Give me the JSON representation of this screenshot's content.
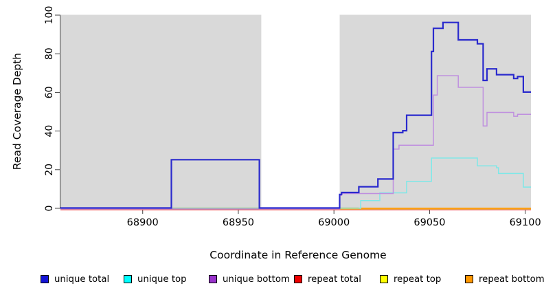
{
  "chart_data": {
    "type": "line",
    "step": true,
    "title": "",
    "xlabel": "Coordinate in Reference Genome",
    "ylabel": "Read Coverage Depth",
    "xlim": [
      68857,
      69103
    ],
    "ylim": [
      0,
      100
    ],
    "x_ticks": [
      "68900",
      "68950",
      "69000",
      "69050",
      "69100"
    ],
    "x_tick_values": [
      68900,
      68950,
      69000,
      69050,
      69100
    ],
    "y_ticks": [
      "0",
      "20",
      "40",
      "60",
      "80",
      "100"
    ],
    "y_tick_values": [
      0,
      20,
      40,
      60,
      80,
      100
    ],
    "grid": false,
    "legend_position": "bottom",
    "panel_color": "#d9d9d9",
    "panel_regions": [
      [
        68857,
        68962
      ],
      [
        69003,
        69103
      ]
    ],
    "gap_region": [
      68962,
      69003
    ],
    "series": [
      {
        "name": "unique total",
        "color": "#2a2acd",
        "width": 2.2,
        "offset": -0.5,
        "points": [
          [
            68857,
            0
          ],
          [
            68915,
            0
          ],
          [
            68915,
            25
          ],
          [
            68961,
            25
          ],
          [
            68961,
            0
          ],
          [
            69003,
            0
          ],
          [
            69003,
            7
          ],
          [
            69004,
            7
          ],
          [
            69004,
            8
          ],
          [
            69013,
            8
          ],
          [
            69013,
            11
          ],
          [
            69023,
            11
          ],
          [
            69023,
            15
          ],
          [
            69031,
            15
          ],
          [
            69031,
            39
          ],
          [
            69036,
            39
          ],
          [
            69036,
            40
          ],
          [
            69038,
            40
          ],
          [
            69038,
            48
          ],
          [
            69051,
            48
          ],
          [
            69051,
            81
          ],
          [
            69052,
            81
          ],
          [
            69052,
            93
          ],
          [
            69057,
            93
          ],
          [
            69057,
            96
          ],
          [
            69065,
            96
          ],
          [
            69065,
            87
          ],
          [
            69075,
            87
          ],
          [
            69075,
            85
          ],
          [
            69078,
            85
          ],
          [
            69078,
            66
          ],
          [
            69080,
            66
          ],
          [
            69080,
            72
          ],
          [
            69085,
            72
          ],
          [
            69085,
            69
          ],
          [
            69094,
            69
          ],
          [
            69094,
            67
          ],
          [
            69096,
            67
          ],
          [
            69096,
            68
          ],
          [
            69099,
            68
          ],
          [
            69099,
            60
          ],
          [
            69103,
            60
          ]
        ]
      },
      {
        "name": "unique top",
        "color": "#7de8e8",
        "width": 1.5,
        "offset": 0,
        "points": [
          [
            69013,
            0
          ],
          [
            69014,
            0
          ],
          [
            69014,
            4
          ],
          [
            69024,
            4
          ],
          [
            69024,
            8
          ],
          [
            69038,
            8
          ],
          [
            69038,
            14
          ],
          [
            69051,
            14
          ],
          [
            69051,
            26
          ],
          [
            69075,
            26
          ],
          [
            69075,
            22
          ],
          [
            69085,
            22
          ],
          [
            69085,
            21
          ],
          [
            69086,
            21
          ],
          [
            69086,
            18
          ],
          [
            69099,
            18
          ],
          [
            69099,
            11
          ],
          [
            69103,
            11
          ]
        ]
      },
      {
        "name": "unique bottom",
        "color": "#bf8fdf",
        "width": 1.5,
        "offset": 1,
        "points": [
          [
            68857,
            0
          ],
          [
            69003,
            0
          ],
          [
            69003,
            7
          ],
          [
            69004,
            7
          ],
          [
            69004,
            8
          ],
          [
            69031,
            8
          ],
          [
            69031,
            31
          ],
          [
            69034,
            31
          ],
          [
            69034,
            33
          ],
          [
            69052,
            33
          ],
          [
            69052,
            59
          ],
          [
            69054,
            59
          ],
          [
            69054,
            69
          ],
          [
            69065,
            69
          ],
          [
            69065,
            63
          ],
          [
            69078,
            63
          ],
          [
            69078,
            43
          ],
          [
            69080,
            43
          ],
          [
            69080,
            50
          ],
          [
            69094,
            50
          ],
          [
            69094,
            48
          ],
          [
            69096,
            48
          ],
          [
            69096,
            49
          ],
          [
            69103,
            49
          ]
        ]
      },
      {
        "name": "repeat total",
        "color": "#ee0000",
        "width": 1.2,
        "offset": 2,
        "points": [
          [
            68857,
            0
          ],
          [
            69103,
            0
          ]
        ]
      },
      {
        "name": "repeat top",
        "color": "#e8e060",
        "width": 1.2,
        "offset": 1.2,
        "points": [
          [
            68857,
            0
          ],
          [
            69103,
            0
          ]
        ]
      },
      {
        "name": "repeat bottom",
        "color": "#ff9800",
        "width": 1.8,
        "offset": 0,
        "points": [
          [
            69013,
            0
          ],
          [
            69103,
            0
          ]
        ]
      }
    ],
    "baseline_blend": {
      "note": "cyan-over-yellow blend visible where unique lines leave zero",
      "color": "#85c985",
      "width": 1.4,
      "segments": [
        [
          68915,
          68961
        ],
        [
          69003,
          69013
        ]
      ]
    }
  },
  "axis": {
    "tick_color": "#404040",
    "label_color": "#000000"
  },
  "legend": {
    "swatch_border": "#000000",
    "items": [
      {
        "label": "unique total",
        "color": "#1414d6"
      },
      {
        "label": "unique top",
        "color": "#00ffff"
      },
      {
        "label": "unique bottom",
        "color": "#9933cc"
      },
      {
        "label": "repeat total",
        "color": "#ee0000"
      },
      {
        "label": "repeat top",
        "color": "#ffff00"
      },
      {
        "label": "repeat bottom",
        "color": "#ff9800"
      }
    ]
  }
}
